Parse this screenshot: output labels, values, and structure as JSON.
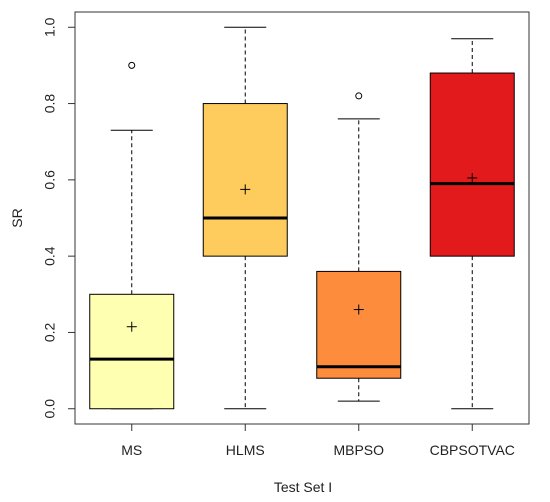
{
  "chart_data": {
    "type": "box",
    "xlabel": "Test Set I",
    "ylabel": "SR",
    "ylim": [
      -0.04,
      1.04
    ],
    "yticks": [
      "0.0",
      "0.2",
      "0.4",
      "0.6",
      "0.8",
      "1.0"
    ],
    "grid": false,
    "categories": [
      "MS",
      "HLMS",
      "MBPSO",
      "CBPSOTVAC"
    ],
    "boxes": [
      {
        "category": "MS",
        "min": 0.0,
        "q1": 0.0,
        "median": 0.13,
        "q3": 0.3,
        "max": 0.73,
        "mean": 0.215,
        "outliers": [
          0.9
        ],
        "color": "#FFFFB2"
      },
      {
        "category": "HLMS",
        "min": 0.0,
        "q1": 0.4,
        "median": 0.5,
        "q3": 0.8,
        "max": 1.0,
        "mean": 0.575,
        "outliers": [],
        "color": "#FECC5C"
      },
      {
        "category": "MBPSO",
        "min": 0.02,
        "q1": 0.08,
        "median": 0.11,
        "q3": 0.36,
        "max": 0.76,
        "mean": 0.26,
        "outliers": [
          0.82
        ],
        "color": "#FD8D3C"
      },
      {
        "category": "CBPSOTVAC",
        "min": 0.0,
        "q1": 0.4,
        "median": 0.59,
        "q3": 0.88,
        "max": 0.97,
        "mean": 0.605,
        "outliers": [],
        "color": "#E31A1C"
      }
    ]
  }
}
